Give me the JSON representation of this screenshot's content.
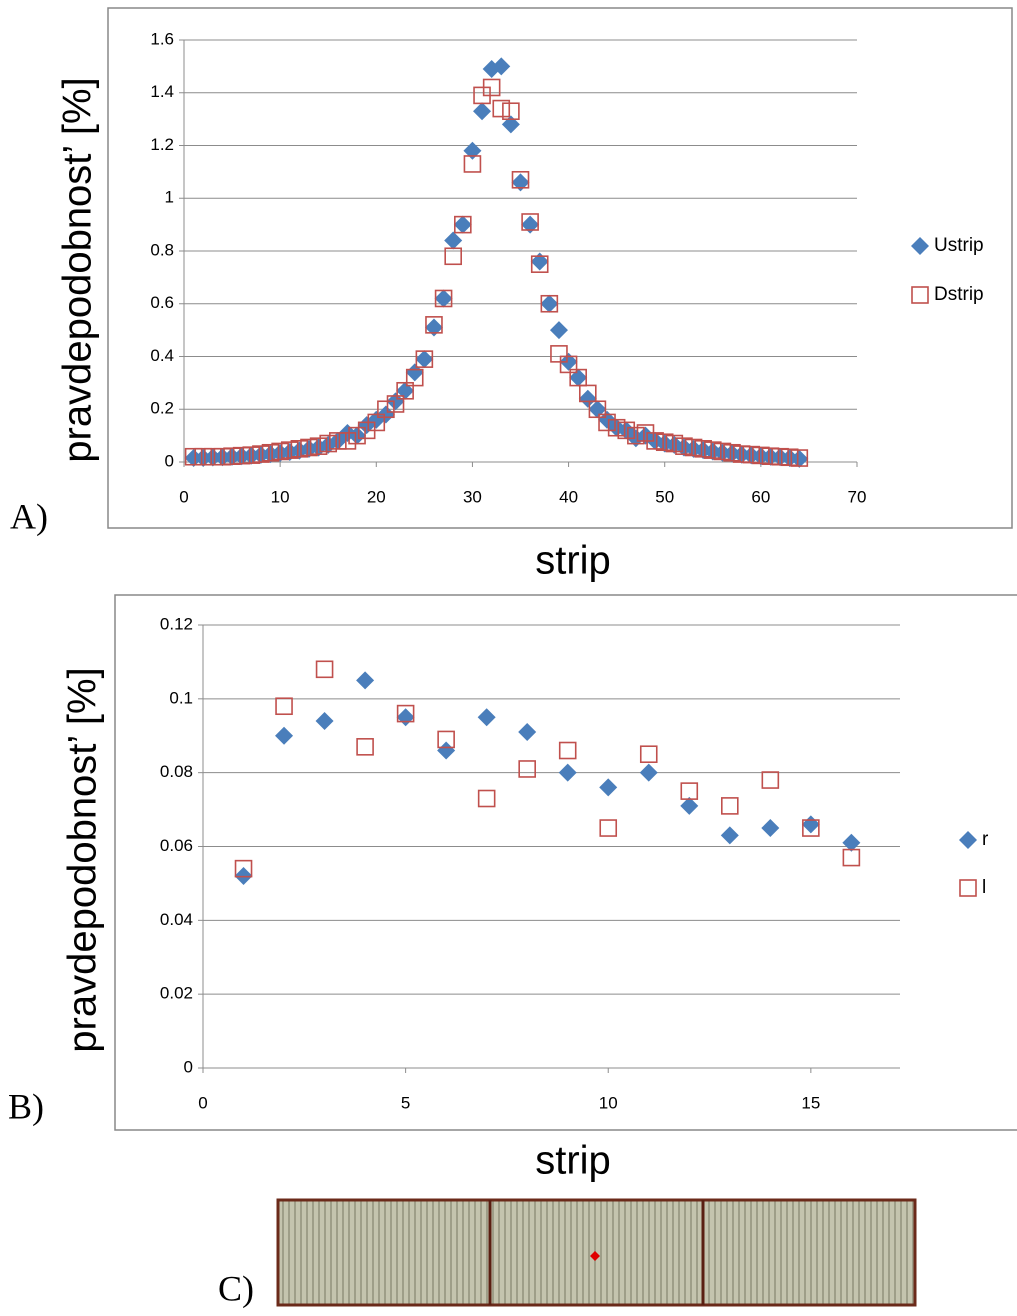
{
  "chart_data": [
    {
      "type": "scatter",
      "panel": "A)",
      "xlabel": "strip",
      "ylabel": "pravdepodobnost’ [%]",
      "x": [
        1,
        2,
        3,
        4,
        5,
        6,
        7,
        8,
        9,
        10,
        11,
        12,
        13,
        14,
        15,
        16,
        17,
        18,
        19,
        20,
        21,
        22,
        23,
        24,
        25,
        26,
        27,
        28,
        29,
        30,
        31,
        32,
        33,
        34,
        35,
        36,
        37,
        38,
        39,
        40,
        41,
        42,
        43,
        44,
        45,
        46,
        47,
        48,
        49,
        50,
        51,
        52,
        53,
        54,
        55,
        56,
        57,
        58,
        59,
        60,
        61,
        62,
        63,
        64
      ],
      "series": [
        {
          "name": "Ustrip",
          "color": "#4a7ebb",
          "marker": "diamond",
          "values": [
            0.015,
            0.015,
            0.017,
            0.018,
            0.02,
            0.022,
            0.024,
            0.027,
            0.03,
            0.034,
            0.038,
            0.043,
            0.05,
            0.055,
            0.065,
            0.08,
            0.11,
            0.1,
            0.14,
            0.16,
            0.18,
            0.23,
            0.27,
            0.34,
            0.39,
            0.51,
            0.62,
            0.84,
            0.9,
            1.18,
            1.33,
            1.49,
            1.5,
            1.28,
            1.06,
            0.9,
            0.76,
            0.6,
            0.5,
            0.38,
            0.32,
            0.24,
            0.2,
            0.16,
            0.13,
            0.12,
            0.09,
            0.1,
            0.08,
            0.07,
            0.065,
            0.055,
            0.05,
            0.045,
            0.04,
            0.035,
            0.032,
            0.028,
            0.025,
            0.022,
            0.02,
            0.018,
            0.015,
            0.012
          ]
        },
        {
          "name": "Dstrip",
          "color": "#c0504d",
          "marker": "square",
          "values": [
            0.02,
            0.02,
            0.02,
            0.02,
            0.022,
            0.024,
            0.026,
            0.03,
            0.035,
            0.04,
            0.045,
            0.05,
            0.055,
            0.06,
            0.07,
            0.08,
            0.08,
            0.1,
            0.12,
            0.15,
            0.2,
            0.22,
            0.27,
            0.32,
            0.39,
            0.52,
            0.62,
            0.78,
            0.9,
            1.13,
            1.39,
            1.42,
            1.34,
            1.33,
            1.07,
            0.91,
            0.75,
            0.6,
            0.41,
            0.37,
            0.32,
            0.26,
            0.2,
            0.15,
            0.13,
            0.12,
            0.1,
            0.11,
            0.08,
            0.075,
            0.07,
            0.06,
            0.055,
            0.05,
            0.045,
            0.04,
            0.035,
            0.03,
            0.028,
            0.025,
            0.022,
            0.02,
            0.018,
            0.015
          ]
        }
      ],
      "xlim": [
        0,
        70
      ],
      "xticks": [
        0,
        10,
        20,
        30,
        40,
        50,
        60,
        70
      ],
      "ylim": [
        0,
        1.6
      ],
      "yticks": [
        0,
        0.2,
        0.4,
        0.6,
        0.8,
        1,
        1.2,
        1.4,
        1.6
      ],
      "grid": true,
      "legend": "right"
    },
    {
      "type": "scatter",
      "panel": "B)",
      "xlabel": "strip",
      "ylabel": "pravdepodobnost’ [%]",
      "x": [
        1,
        2,
        3,
        4,
        5,
        6,
        7,
        8,
        9,
        10,
        11,
        12,
        13,
        14,
        15,
        16
      ],
      "series": [
        {
          "name": "r",
          "color": "#4a7ebb",
          "marker": "diamond",
          "values": [
            0.052,
            0.09,
            0.094,
            0.105,
            0.095,
            0.086,
            0.095,
            0.091,
            0.08,
            0.076,
            0.08,
            0.071,
            0.063,
            0.065,
            0.066,
            0.061
          ]
        },
        {
          "name": "l",
          "color": "#c0504d",
          "marker": "square",
          "values": [
            0.054,
            0.098,
            0.108,
            0.087,
            0.096,
            0.089,
            0.073,
            0.081,
            0.086,
            0.065,
            0.085,
            0.075,
            0.071,
            0.078,
            0.065,
            0.057
          ]
        }
      ],
      "xlim": [
        0,
        17.2
      ],
      "xticks": [
        0,
        5,
        10,
        15
      ],
      "ylim": [
        0,
        0.12
      ],
      "yticks": [
        0,
        0.02,
        0.04,
        0.06,
        0.08,
        0.1,
        0.12
      ],
      "grid": true,
      "legend": "right"
    }
  ],
  "figure_c": {
    "panel": "C)"
  }
}
